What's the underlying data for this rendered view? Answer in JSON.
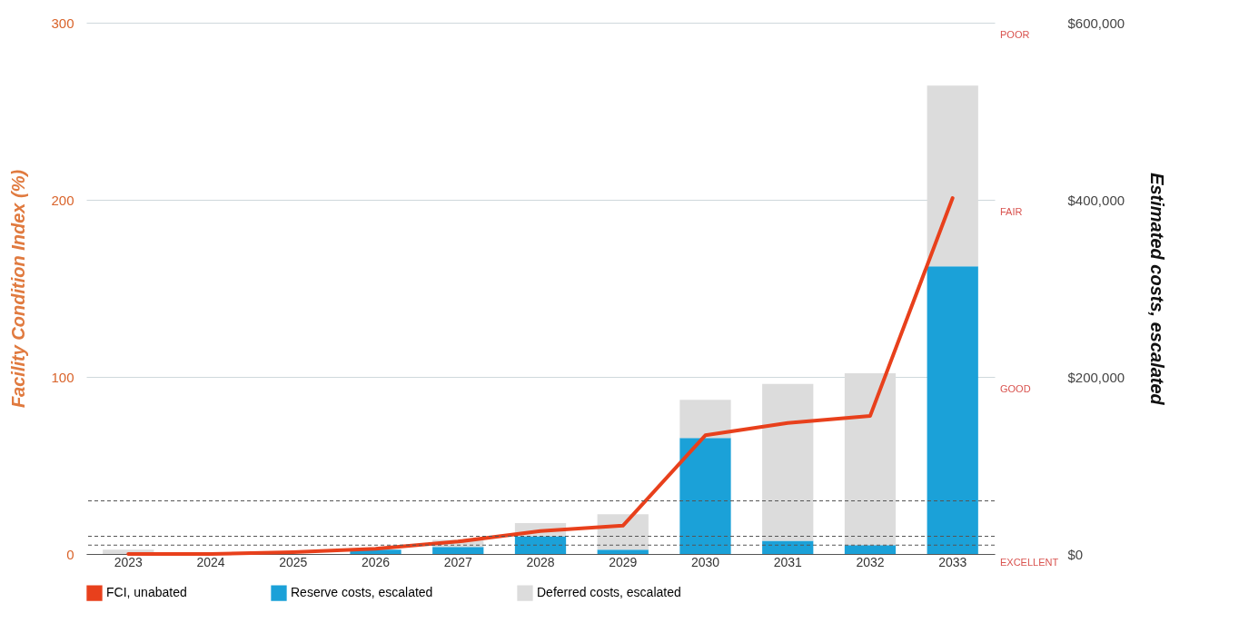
{
  "chart_data": {
    "type": "bar",
    "stacked": true,
    "categories": [
      "2023",
      "2024",
      "2025",
      "2026",
      "2027",
      "2028",
      "2029",
      "2030",
      "2031",
      "2032",
      "2033"
    ],
    "ylabel": "Facility Condition Index (%)",
    "y2label": "Estimated costs, escalated",
    "ylim": [
      0,
      300
    ],
    "yticks": [
      0,
      100,
      200,
      300
    ],
    "y2lim": [
      0,
      600000
    ],
    "y2ticks": [
      {
        "value": 0,
        "label": "$0"
      },
      {
        "value": 200000,
        "label": "$200,000"
      },
      {
        "value": 400000,
        "label": "$400,000"
      },
      {
        "value": 600000,
        "label": "$600,000"
      }
    ],
    "grid": "y",
    "legend": "bottom",
    "series": [
      {
        "name": "FCI, unabated",
        "type": "line",
        "color": "#e8401c",
        "values": [
          0,
          0,
          1,
          3,
          7,
          13,
          16,
          67,
          74,
          78,
          201
        ]
      },
      {
        "name": "Reserve costs, escalated",
        "axis": "y2",
        "color": "#1ba1d8",
        "values": [
          0,
          0,
          0,
          5000,
          8000,
          20000,
          5000,
          131000,
          15000,
          10000,
          325000
        ]
      },
      {
        "name": "Deferred costs, escalated",
        "axis": "y2",
        "color": "#dcdcdc",
        "values": [
          5000,
          0,
          0,
          null,
          8000,
          15000,
          40000,
          43000,
          177000,
          194000,
          204000
        ]
      }
    ],
    "ref_lines": [
      {
        "axis": "y",
        "value": 5,
        "line_style": "dashed",
        "color": "#555555"
      },
      {
        "axis": "y",
        "value": 10,
        "line_style": "dashed",
        "color": "#555555"
      },
      {
        "axis": "y",
        "value": 30,
        "line_style": "dashed",
        "color": "#555555"
      }
    ],
    "annotations": [
      "POOR",
      "FAIR",
      "GOOD",
      "EXCELLENT"
    ]
  }
}
